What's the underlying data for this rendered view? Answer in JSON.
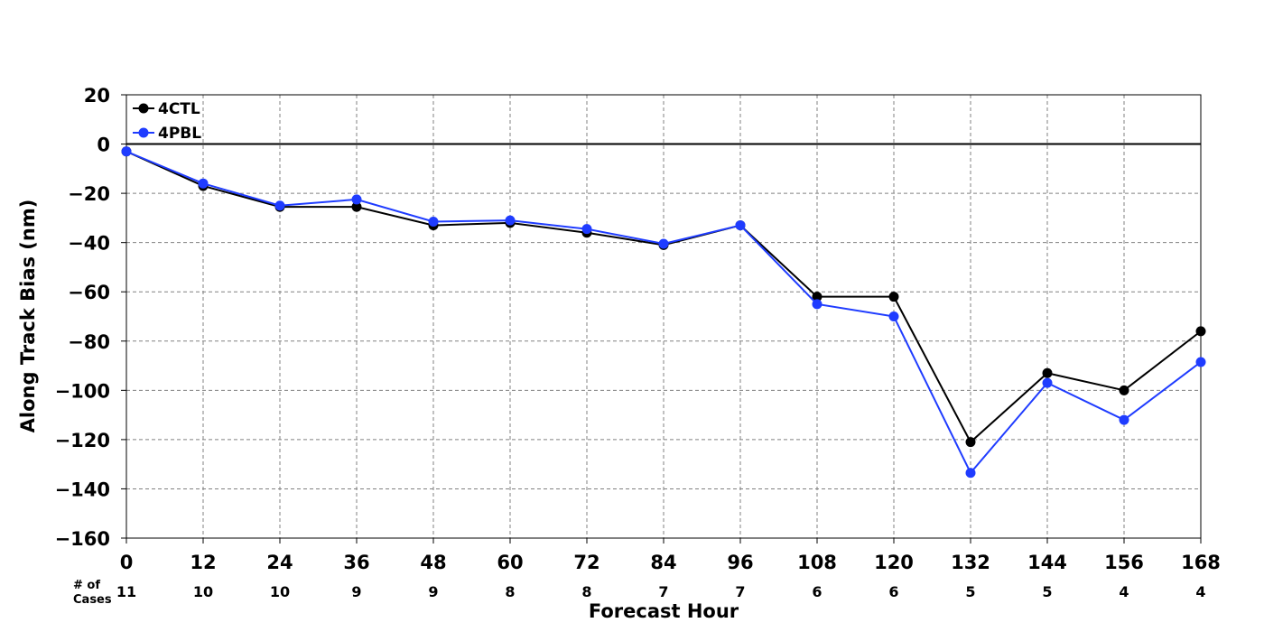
{
  "chart_data": {
    "type": "line",
    "title": "",
    "xlabel": "Forecast Hour",
    "ylabel": "Along Track Bias (nm)",
    "x": [
      0,
      12,
      24,
      36,
      48,
      60,
      72,
      84,
      96,
      108,
      120,
      132,
      144,
      156,
      168
    ],
    "xlim": [
      0,
      168
    ],
    "ylim": [
      -160,
      20
    ],
    "xticks": [
      "0",
      "12",
      "24",
      "36",
      "48",
      "60",
      "72",
      "84",
      "96",
      "108",
      "120",
      "132",
      "144",
      "156",
      "168"
    ],
    "yticks": [
      "20",
      "0",
      "−20",
      "−40",
      "−60",
      "−80",
      "−100",
      "−120",
      "−140",
      "−160"
    ],
    "ytick_values": [
      20,
      0,
      -20,
      -40,
      -60,
      -80,
      -100,
      -120,
      -140,
      -160
    ],
    "grid": true,
    "legend": "top-left",
    "cases_label": "# of\nCases",
    "cases": [
      "11",
      "10",
      "10",
      "9",
      "9",
      "8",
      "8",
      "7",
      "7",
      "6",
      "6",
      "5",
      "5",
      "4",
      "4"
    ],
    "series": [
      {
        "name": "4CTL",
        "color": "#000000",
        "values": [
          -3,
          -17,
          -25.5,
          -25.5,
          -33,
          -32,
          -36,
          -41,
          -33,
          -62,
          -62,
          -121,
          -93,
          -100,
          -76
        ]
      },
      {
        "name": "4PBL",
        "color": "#1f3cff",
        "values": [
          -3,
          -16,
          -25,
          -22.5,
          -31.5,
          -31,
          -34.5,
          -40.5,
          -33,
          -65,
          -70,
          -133.5,
          -97,
          -112,
          -88.5
        ]
      }
    ]
  }
}
